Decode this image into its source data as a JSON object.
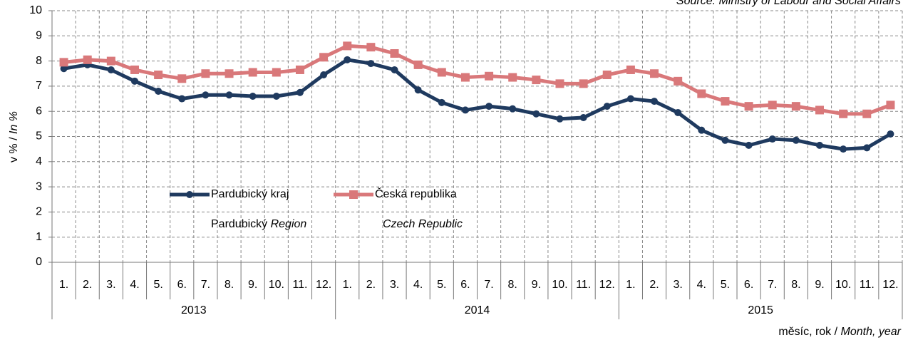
{
  "chart_data": {
    "type": "line",
    "source": "Source: Ministry of Labour and Social Affairs",
    "y_label": [
      "v % / ",
      "In %"
    ],
    "x_label": [
      "měsíc, rok / ",
      "Month, year"
    ],
    "categories": [
      "1.",
      "2.",
      "3.",
      "4.",
      "5.",
      "6.",
      "7.",
      "8.",
      "9.",
      "10.",
      "11.",
      "12.",
      "1.",
      "2.",
      "3.",
      "4.",
      "5.",
      "6.",
      "7.",
      "8.",
      "9.",
      "10.",
      "11.",
      "12.",
      "1.",
      "2.",
      "3.",
      "4.",
      "5.",
      "6.",
      "7.",
      "8.",
      "9.",
      "10.",
      "11.",
      "12."
    ],
    "groups": [
      "2013",
      "2014",
      "2015"
    ],
    "series": [
      {
        "name": "Pardubický kraj",
        "subtitle": [
          "Pardubický ",
          "Region"
        ],
        "color": "#1f3a5f",
        "marker": "circle",
        "values": [
          7.7,
          7.85,
          7.65,
          7.2,
          6.8,
          6.5,
          6.65,
          6.65,
          6.6,
          6.6,
          6.75,
          7.45,
          8.05,
          7.9,
          7.65,
          6.85,
          6.35,
          6.05,
          6.2,
          6.1,
          5.9,
          5.7,
          5.75,
          6.2,
          6.5,
          6.4,
          5.95,
          5.25,
          4.85,
          4.65,
          4.9,
          4.85,
          4.65,
          4.5,
          4.55,
          5.1
        ]
      },
      {
        "name": "Česká republika",
        "subtitle": [
          "",
          "Czech Republic"
        ],
        "color": "#d9787a",
        "marker": "square",
        "values": [
          7.95,
          8.05,
          8.0,
          7.65,
          7.45,
          7.3,
          7.5,
          7.5,
          7.55,
          7.55,
          7.65,
          8.15,
          8.6,
          8.55,
          8.3,
          7.85,
          7.55,
          7.35,
          7.4,
          7.35,
          7.25,
          7.1,
          7.1,
          7.45,
          7.65,
          7.5,
          7.2,
          6.7,
          6.4,
          6.2,
          6.25,
          6.2,
          6.05,
          5.9,
          5.9,
          6.25
        ]
      }
    ],
    "ylim": [
      0,
      10
    ],
    "yticks": [
      0,
      1,
      2,
      3,
      4,
      5,
      6,
      7,
      8,
      9,
      10
    ],
    "grid": true
  }
}
